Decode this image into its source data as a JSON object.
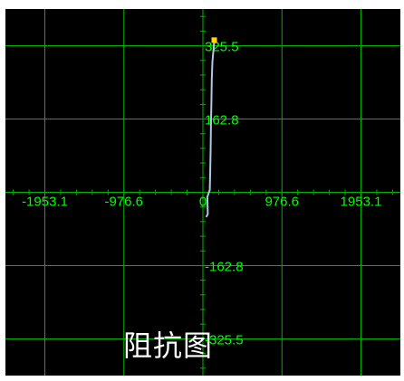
{
  "title": "阻抗图",
  "colors": {
    "background": "#000000",
    "grid": "#00b300",
    "tick_text": "#00ff00",
    "trace": "#b0c8e0",
    "marker": "#ffd800",
    "title_text": "#ffffff"
  },
  "chart_data": {
    "type": "line",
    "grid": true,
    "xlim": [
      -2440,
      2440
    ],
    "ylim": [
      -407,
      407
    ],
    "x_ticks": [
      -1953.1,
      -976.6,
      0,
      976.6,
      1953.1
    ],
    "x_tick_labels": [
      "-1953.1",
      "-976.6",
      "0",
      "976.6",
      "1953.1"
    ],
    "y_ticks": [
      325.5,
      162.8,
      -162.8,
      -325.5
    ],
    "y_tick_labels": [
      "325.5",
      "162.8",
      "-162.8",
      "-325.5"
    ],
    "series": [
      {
        "x": [
          40,
          60,
          55,
          85,
          90,
          95,
          100,
          105,
          110,
          118,
          128,
          135,
          140
        ],
        "y": [
          -55,
          -48,
          -10,
          5,
          40,
          90,
          150,
          200,
          250,
          290,
          310,
          325,
          338
        ]
      }
    ],
    "end_marker": {
      "x": 140,
      "y": 338
    }
  }
}
